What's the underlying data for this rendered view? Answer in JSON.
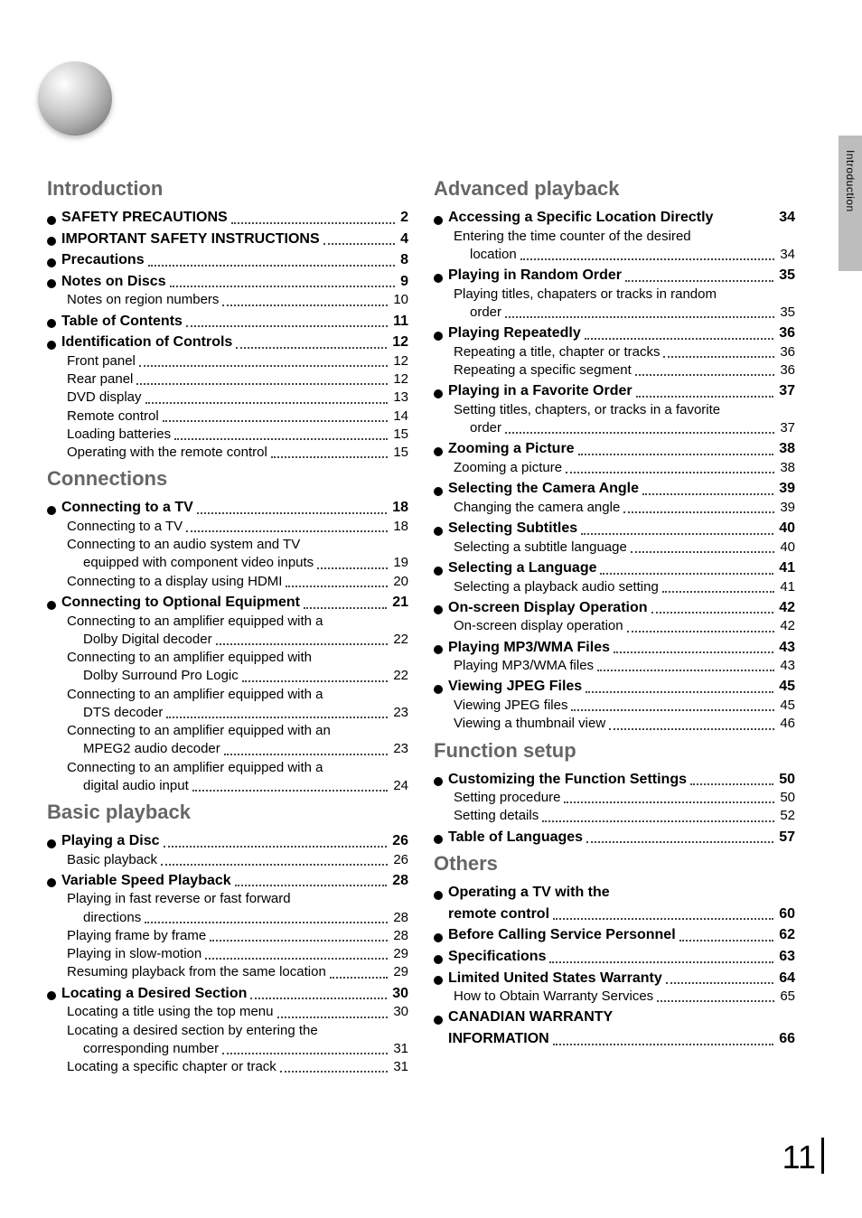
{
  "side_tab": "Introduction",
  "page_number": "11",
  "left": {
    "sections": [
      {
        "title": "Introduction",
        "items": [
          {
            "type": "bold",
            "label": "SAFETY PRECAUTIONS",
            "page": "2"
          },
          {
            "type": "bold",
            "label": "IMPORTANT SAFETY INSTRUCTIONS",
            "page": "4"
          },
          {
            "type": "bold",
            "label": "Precautions",
            "page": "8"
          },
          {
            "type": "bold",
            "label": "Notes on Discs",
            "page": "9"
          },
          {
            "type": "sub",
            "label": "Notes on region numbers",
            "page": "10"
          },
          {
            "type": "bold",
            "label": "Table of Contents",
            "page": "11"
          },
          {
            "type": "bold",
            "label": "Identification of Controls",
            "page": "12"
          },
          {
            "type": "sub",
            "label": "Front panel",
            "page": "12"
          },
          {
            "type": "sub",
            "label": "Rear panel",
            "page": "12"
          },
          {
            "type": "sub",
            "label": "DVD display",
            "page": "13"
          },
          {
            "type": "sub",
            "label": "Remote control",
            "page": "14"
          },
          {
            "type": "sub",
            "label": "Loading batteries",
            "page": "15"
          },
          {
            "type": "sub",
            "label": "Operating with the remote control",
            "page": "15"
          }
        ]
      },
      {
        "title": "Connections",
        "items": [
          {
            "type": "bold",
            "label": "Connecting to a TV",
            "page": "18"
          },
          {
            "type": "sub",
            "label": "Connecting to a TV",
            "page": "18"
          },
          {
            "type": "sub",
            "label_lines": [
              "Connecting to an audio system and TV",
              "equipped with component video inputs"
            ],
            "page": "19"
          },
          {
            "type": "sub",
            "label": "Connecting to a display using HDMI",
            "page": "20"
          },
          {
            "type": "bold",
            "label": "Connecting to Optional Equipment",
            "page": "21"
          },
          {
            "type": "sub",
            "label_lines": [
              "Connecting to an amplifier equipped with a",
              "Dolby Digital decoder"
            ],
            "page": "22"
          },
          {
            "type": "sub",
            "label_lines": [
              "Connecting to an amplifier equipped with",
              "Dolby Surround Pro Logic"
            ],
            "page": "22"
          },
          {
            "type": "sub",
            "label_lines": [
              "Connecting to an amplifier equipped with a",
              "DTS decoder"
            ],
            "page": "23"
          },
          {
            "type": "sub",
            "label_lines": [
              "Connecting to an amplifier equipped with an",
              "MPEG2 audio decoder"
            ],
            "page": "23"
          },
          {
            "type": "sub",
            "label_lines": [
              "Connecting to an amplifier equipped with a",
              "digital audio input"
            ],
            "page": "24"
          }
        ]
      },
      {
        "title": "Basic playback",
        "items": [
          {
            "type": "bold",
            "label": "Playing a Disc",
            "page": "26"
          },
          {
            "type": "sub",
            "label": "Basic playback",
            "page": "26"
          },
          {
            "type": "bold",
            "label": "Variable Speed Playback",
            "page": "28"
          },
          {
            "type": "sub",
            "label_lines": [
              "Playing in fast reverse or fast forward",
              "directions"
            ],
            "page": "28"
          },
          {
            "type": "sub",
            "label": "Playing frame by frame",
            "page": "28"
          },
          {
            "type": "sub",
            "label": "Playing in slow-motion",
            "page": "29"
          },
          {
            "type": "sub",
            "label": "Resuming playback from the same location",
            "page": "29"
          },
          {
            "type": "bold",
            "label": "Locating a Desired Section",
            "page": "30"
          },
          {
            "type": "sub",
            "label": "Locating a title using the top menu",
            "page": "30"
          },
          {
            "type": "sub",
            "label_lines": [
              "Locating a desired section by entering the",
              "corresponding number"
            ],
            "page": "31"
          },
          {
            "type": "sub",
            "label": "Locating a specific chapter or track",
            "page": "31"
          }
        ]
      }
    ]
  },
  "right": {
    "sections": [
      {
        "title": "Advanced playback",
        "items": [
          {
            "type": "bold",
            "label": "Accessing a Specific Location Directly",
            "page": "34",
            "no_leader": true
          },
          {
            "type": "sub",
            "label_lines": [
              "Entering the time counter of the desired",
              "location"
            ],
            "page": "34"
          },
          {
            "type": "bold",
            "label": "Playing in Random Order",
            "page": "35"
          },
          {
            "type": "sub",
            "label_lines": [
              "Playing titles, chapaters or tracks in random",
              "order"
            ],
            "page": "35"
          },
          {
            "type": "bold",
            "label": "Playing Repeatedly",
            "page": "36"
          },
          {
            "type": "sub",
            "label": "Repeating a title, chapter or tracks",
            "page": "36"
          },
          {
            "type": "sub",
            "label": "Repeating a specific segment",
            "page": "36"
          },
          {
            "type": "bold",
            "label": "Playing in a Favorite Order",
            "page": "37"
          },
          {
            "type": "sub",
            "label_lines": [
              "Setting titles, chapters, or tracks in a favorite",
              "order"
            ],
            "page": "37"
          },
          {
            "type": "bold",
            "label": "Zooming a Picture",
            "page": "38"
          },
          {
            "type": "sub",
            "label": "Zooming a picture",
            "page": "38"
          },
          {
            "type": "bold",
            "label": "Selecting the Camera Angle",
            "page": "39"
          },
          {
            "type": "sub",
            "label": "Changing the camera angle",
            "page": "39"
          },
          {
            "type": "bold",
            "label": "Selecting Subtitles",
            "page": "40"
          },
          {
            "type": "sub",
            "label": "Selecting a subtitle language",
            "page": "40"
          },
          {
            "type": "bold",
            "label": "Selecting a Language",
            "page": "41"
          },
          {
            "type": "sub",
            "label": "Selecting a playback audio setting",
            "page": "41"
          },
          {
            "type": "bold",
            "label": "On-screen Display Operation",
            "page": "42"
          },
          {
            "type": "sub",
            "label": "On-screen display operation",
            "page": "42"
          },
          {
            "type": "bold",
            "label": "Playing MP3/WMA Files",
            "page": "43"
          },
          {
            "type": "sub",
            "label": "Playing MP3/WMA files",
            "page": "43"
          },
          {
            "type": "bold",
            "label": "Viewing JPEG Files",
            "page": "45"
          },
          {
            "type": "sub",
            "label": "Viewing JPEG files",
            "page": "45"
          },
          {
            "type": "sub",
            "label": "Viewing a thumbnail view",
            "page": "46"
          }
        ]
      },
      {
        "title": "Function setup",
        "items": [
          {
            "type": "bold",
            "label": "Customizing the Function Settings",
            "page": "50"
          },
          {
            "type": "sub",
            "label": "Setting procedure",
            "page": "50"
          },
          {
            "type": "sub",
            "label": "Setting details",
            "page": "52"
          },
          {
            "type": "bold",
            "label": "Table of Languages",
            "page": "57"
          }
        ]
      },
      {
        "title": "Others",
        "items": [
          {
            "type": "bold",
            "label_lines": [
              "Operating a TV with the",
              "remote control"
            ],
            "page": "60"
          },
          {
            "type": "bold",
            "label": "Before Calling Service Personnel",
            "page": "62"
          },
          {
            "type": "bold",
            "label": "Specifications",
            "page": "63"
          },
          {
            "type": "bold",
            "label": "Limited United States Warranty",
            "page": "64"
          },
          {
            "type": "sub",
            "label": "How to Obtain Warranty Services",
            "page": "65"
          },
          {
            "type": "bold",
            "label_lines": [
              "CANADIAN WARRANTY",
              "INFORMATION"
            ],
            "page": "66"
          }
        ]
      }
    ]
  }
}
